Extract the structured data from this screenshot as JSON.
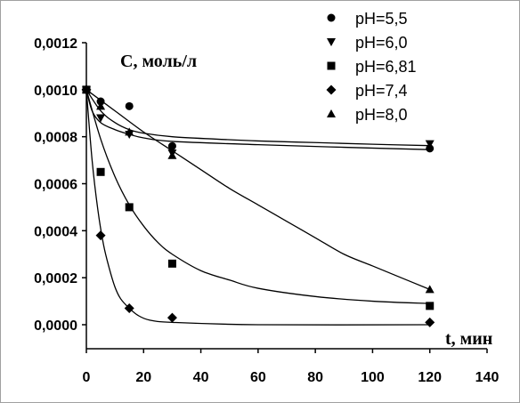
{
  "chart_data": {
    "type": "scatter",
    "ylabel": "С, моль/л",
    "xlabel": "t, мин",
    "xlim": [
      0,
      140
    ],
    "ylim": [
      0,
      0.0012
    ],
    "x_ticks": [
      "0",
      "20",
      "40",
      "60",
      "80",
      "100",
      "120",
      "140"
    ],
    "y_ticks": [
      "0,0000",
      "0,0002",
      "0,0004",
      "0,0006",
      "0,0008",
      "0,0010",
      "0,0012"
    ],
    "grid": false,
    "legend_position": "top-right",
    "series": [
      {
        "name": "pH=5,5",
        "marker": "circle",
        "points": [
          [
            0,
            0.001
          ],
          [
            5,
            0.00095
          ],
          [
            15,
            0.00093
          ],
          [
            30,
            0.00076
          ],
          [
            120,
            0.00075
          ]
        ],
        "fit": [
          [
            0,
            0.001
          ],
          [
            5,
            0.00091
          ],
          [
            10,
            0.00086
          ],
          [
            15,
            0.00083
          ],
          [
            20,
            0.000815
          ],
          [
            30,
            0.0008
          ],
          [
            45,
            0.00079
          ],
          [
            60,
            0.000782
          ],
          [
            80,
            0.000775
          ],
          [
            100,
            0.000768
          ],
          [
            120,
            0.000762
          ]
        ]
      },
      {
        "name": "pH=6,0",
        "marker": "triangle-down",
        "points": [
          [
            0,
            0.001
          ],
          [
            5,
            0.00088
          ],
          [
            15,
            0.00081
          ],
          [
            30,
            0.00073
          ],
          [
            120,
            0.00077
          ]
        ],
        "fit": [
          [
            0,
            0.001
          ],
          [
            2,
            0.00091
          ],
          [
            5,
            0.00086
          ],
          [
            10,
            0.00083
          ],
          [
            15,
            0.00081
          ],
          [
            20,
            0.000795
          ],
          [
            30,
            0.00078
          ],
          [
            60,
            0.000766
          ],
          [
            90,
            0.000755
          ],
          [
            120,
            0.000745
          ]
        ]
      },
      {
        "name": "pH=6,81",
        "marker": "square",
        "points": [
          [
            0,
            0.001
          ],
          [
            5,
            0.00065
          ],
          [
            15,
            0.0005
          ],
          [
            30,
            0.00026
          ],
          [
            120,
            8e-05
          ]
        ],
        "fit": [
          [
            0,
            0.001
          ],
          [
            5,
            0.00079
          ],
          [
            10,
            0.00063
          ],
          [
            15,
            0.00051
          ],
          [
            20,
            0.00042
          ],
          [
            25,
            0.00035
          ],
          [
            30,
            0.0003
          ],
          [
            40,
            0.00023
          ],
          [
            50,
            0.00019
          ],
          [
            60,
            0.000155
          ],
          [
            80,
            0.00012
          ],
          [
            100,
            0.0001
          ],
          [
            120,
            9e-05
          ]
        ]
      },
      {
        "name": "pH=7,4",
        "marker": "diamond",
        "points": [
          [
            0,
            0.001
          ],
          [
            5,
            0.00038
          ],
          [
            15,
            7e-05
          ],
          [
            30,
            3e-05
          ],
          [
            120,
            1e-05
          ]
        ],
        "fit": [
          [
            0,
            0.001
          ],
          [
            2,
            0.0007
          ],
          [
            4,
            0.00049
          ],
          [
            6,
            0.00034
          ],
          [
            8,
            0.00024
          ],
          [
            10,
            0.00016
          ],
          [
            12,
            0.00011
          ],
          [
            15,
            7e-05
          ],
          [
            18,
            4e-05
          ],
          [
            22,
            2e-05
          ],
          [
            30,
            1e-05
          ],
          [
            60,
            0.0
          ],
          [
            120,
            0.0
          ]
        ]
      },
      {
        "name": "pH=8,0",
        "marker": "triangle-up",
        "points": [
          [
            0,
            0.001
          ],
          [
            5,
            0.00093
          ],
          [
            15,
            0.00082
          ],
          [
            30,
            0.00072
          ],
          [
            120,
            0.00015
          ]
        ],
        "fit": [
          [
            0,
            0.001
          ],
          [
            10,
            0.00091
          ],
          [
            20,
            0.00082
          ],
          [
            30,
            0.00074
          ],
          [
            40,
            0.00066
          ],
          [
            50,
            0.00058
          ],
          [
            60,
            0.00051
          ],
          [
            70,
            0.00044
          ],
          [
            80,
            0.00037
          ],
          [
            90,
            0.0003
          ],
          [
            100,
            0.00025
          ],
          [
            110,
            0.0002
          ],
          [
            120,
            0.00015
          ]
        ]
      }
    ]
  }
}
